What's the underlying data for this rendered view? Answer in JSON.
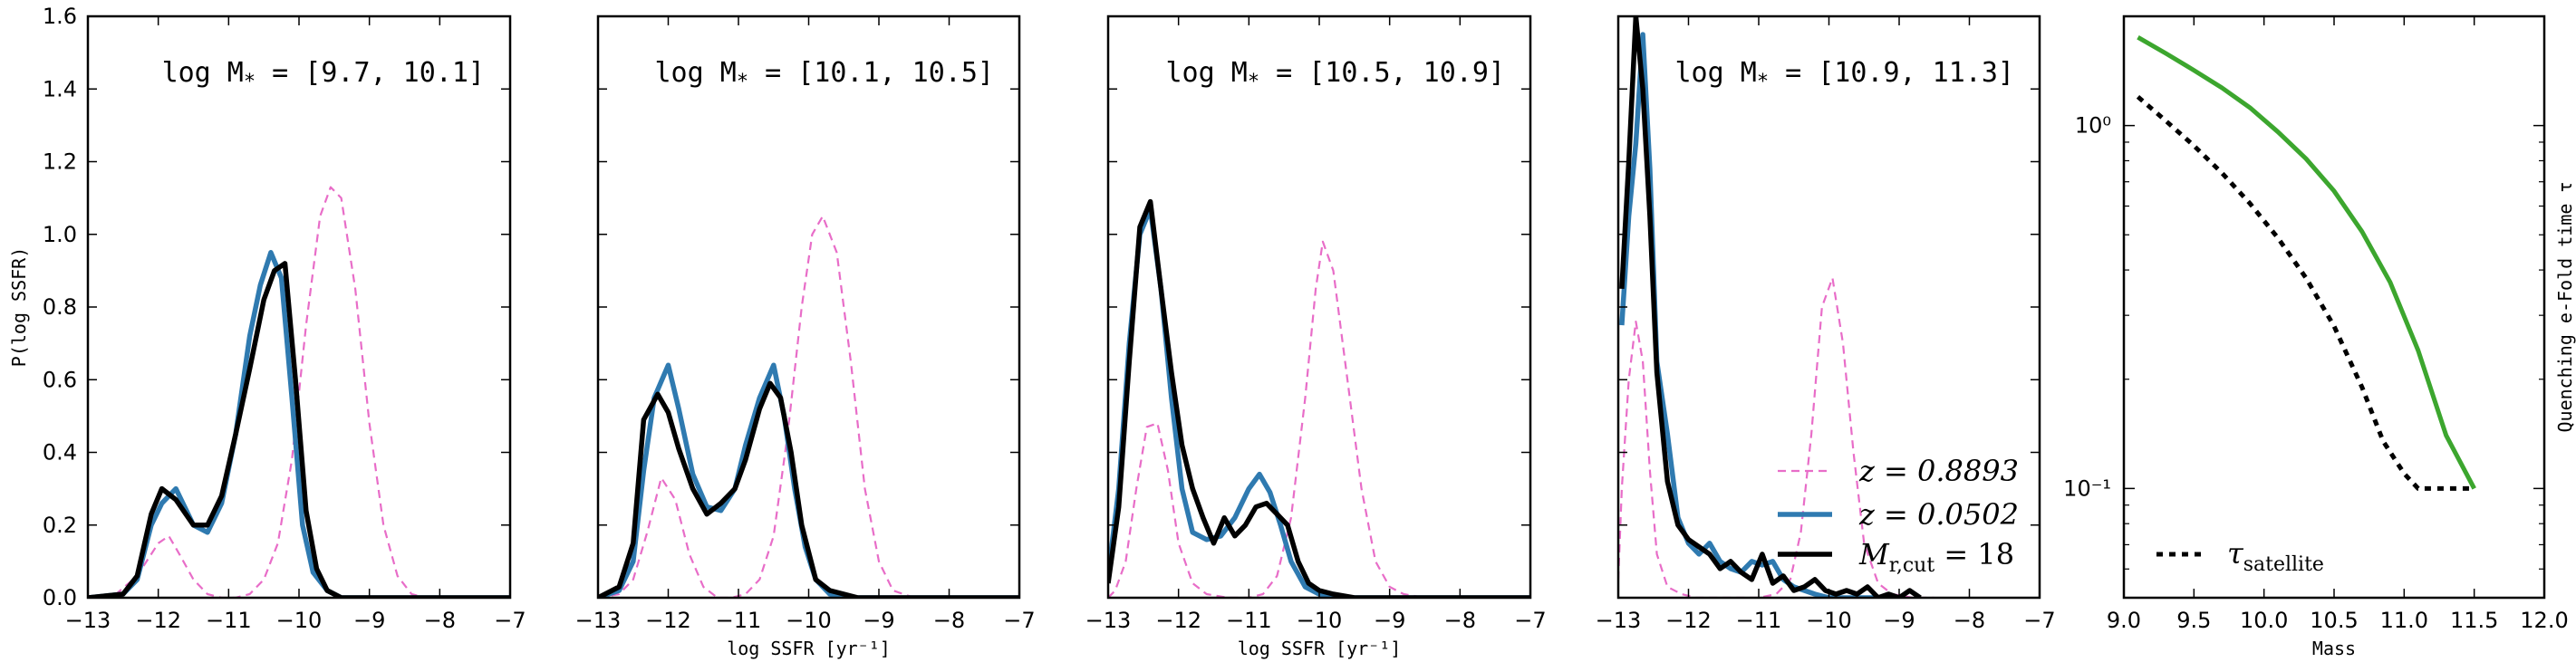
{
  "chart_data": [
    {
      "type": "line",
      "annotation": "log M* = [9.7, 10.1]",
      "ylabel": "P(log SSFR)",
      "xlabel": "",
      "xlim": [
        -13,
        -7
      ],
      "ylim": [
        0,
        1.6
      ],
      "xticks": [
        "−13",
        "−12",
        "−11",
        "−10",
        "−9",
        "−8",
        "−7"
      ],
      "yticks": [
        "0.0",
        "0.2",
        "0.4",
        "0.6",
        "0.8",
        "1.0",
        "1.2",
        "1.4",
        "1.6"
      ],
      "series": [
        {
          "name": "z = 0.8893",
          "x": [
            -13,
            -12.6,
            -12.3,
            -12.0,
            -11.85,
            -11.7,
            -11.5,
            -11.3,
            -11.1,
            -10.9,
            -10.7,
            -10.5,
            -10.3,
            -10.1,
            -9.9,
            -9.7,
            -9.55,
            -9.4,
            -9.2,
            -9.0,
            -8.8,
            -8.6,
            -8.4,
            -8.2,
            -8.0
          ],
          "y": [
            0,
            0.01,
            0.06,
            0.15,
            0.17,
            0.12,
            0.05,
            0.01,
            0,
            0,
            0.01,
            0.05,
            0.15,
            0.38,
            0.75,
            1.05,
            1.13,
            1.1,
            0.85,
            0.48,
            0.2,
            0.06,
            0.01,
            0,
            0
          ]
        },
        {
          "name": "z = 0.0502",
          "x": [
            -13,
            -12.5,
            -12.3,
            -12.1,
            -11.95,
            -11.75,
            -11.5,
            -11.3,
            -11.1,
            -10.9,
            -10.7,
            -10.55,
            -10.4,
            -10.25,
            -10.1,
            -9.95,
            -9.8,
            -9.6,
            -9.4,
            -9.0,
            -8.0,
            -7.0
          ],
          "y": [
            0,
            0.01,
            0.05,
            0.2,
            0.26,
            0.3,
            0.2,
            0.18,
            0.26,
            0.45,
            0.72,
            0.86,
            0.95,
            0.88,
            0.55,
            0.2,
            0.07,
            0.02,
            0,
            0,
            0,
            0
          ]
        },
        {
          "name": "M_r,cut = 18",
          "x": [
            -13,
            -12.5,
            -12.3,
            -12.1,
            -11.95,
            -11.75,
            -11.5,
            -11.3,
            -11.1,
            -10.9,
            -10.7,
            -10.5,
            -10.35,
            -10.2,
            -10.05,
            -9.9,
            -9.75,
            -9.6,
            -9.4,
            -9.0,
            -8.0,
            -7.0
          ],
          "y": [
            0,
            0.01,
            0.06,
            0.23,
            0.3,
            0.27,
            0.2,
            0.2,
            0.28,
            0.45,
            0.63,
            0.82,
            0.9,
            0.92,
            0.6,
            0.24,
            0.08,
            0.02,
            0,
            0,
            0,
            0
          ]
        }
      ]
    },
    {
      "type": "line",
      "annotation": "log M* = [10.1, 10.5]",
      "ylabel": "",
      "xlabel": "log SSFR [yr⁻¹]",
      "xlim": [
        -13,
        -7
      ],
      "ylim": [
        0,
        1.6
      ],
      "xticks": [
        "−13",
        "−12",
        "−11",
        "−10",
        "−9",
        "−8",
        "−7"
      ],
      "yticks": [],
      "series": [
        {
          "name": "z = 0.8893",
          "x": [
            -13,
            -12.7,
            -12.5,
            -12.3,
            -12.1,
            -11.9,
            -11.7,
            -11.5,
            -11.3,
            -11.1,
            -10.9,
            -10.7,
            -10.5,
            -10.3,
            -10.1,
            -9.95,
            -9.8,
            -9.6,
            -9.4,
            -9.2,
            -9.0,
            -8.8,
            -8.5,
            -8.0
          ],
          "y": [
            0,
            0.01,
            0.05,
            0.18,
            0.33,
            0.27,
            0.12,
            0.03,
            0,
            0,
            0.01,
            0.05,
            0.17,
            0.45,
            0.8,
            1.0,
            1.05,
            0.95,
            0.65,
            0.3,
            0.1,
            0.02,
            0,
            0
          ]
        },
        {
          "name": "z = 0.0502",
          "x": [
            -13,
            -12.7,
            -12.5,
            -12.35,
            -12.2,
            -12.0,
            -11.85,
            -11.65,
            -11.45,
            -11.25,
            -11.05,
            -10.9,
            -10.7,
            -10.5,
            -10.35,
            -10.2,
            -10.05,
            -9.9,
            -9.7,
            -9.5,
            -9.3,
            -9.0,
            -8.0,
            -7.0
          ],
          "y": [
            0,
            0.02,
            0.1,
            0.35,
            0.55,
            0.64,
            0.52,
            0.34,
            0.25,
            0.24,
            0.3,
            0.42,
            0.55,
            0.64,
            0.5,
            0.3,
            0.14,
            0.05,
            0.01,
            0,
            0,
            0,
            0,
            0
          ]
        },
        {
          "name": "M_r,cut = 18",
          "x": [
            -13,
            -12.7,
            -12.5,
            -12.35,
            -12.15,
            -12.0,
            -11.85,
            -11.65,
            -11.45,
            -11.25,
            -11.05,
            -10.9,
            -10.7,
            -10.55,
            -10.4,
            -10.25,
            -10.1,
            -9.9,
            -9.7,
            -9.5,
            -9.3,
            -9.0,
            -8.0,
            -7.0
          ],
          "y": [
            0,
            0.03,
            0.15,
            0.49,
            0.56,
            0.51,
            0.41,
            0.3,
            0.23,
            0.26,
            0.3,
            0.38,
            0.52,
            0.59,
            0.55,
            0.4,
            0.2,
            0.05,
            0.02,
            0.01,
            0,
            0,
            0,
            0
          ]
        }
      ]
    },
    {
      "type": "line",
      "annotation": "log M* = [10.5, 10.9]",
      "ylabel": "",
      "xlabel": "log SSFR [yr⁻¹]",
      "xlim": [
        -13,
        -7
      ],
      "ylim": [
        0,
        1.6
      ],
      "xticks": [
        "−13",
        "−12",
        "−11",
        "−10",
        "−9",
        "−8",
        "−7"
      ],
      "yticks": [],
      "series": [
        {
          "name": "z = 0.8893",
          "x": [
            -13,
            -12.9,
            -12.75,
            -12.6,
            -12.45,
            -12.3,
            -12.15,
            -12.0,
            -11.8,
            -11.6,
            -11.3,
            -11.0,
            -10.8,
            -10.6,
            -10.4,
            -10.2,
            -10.05,
            -9.95,
            -9.8,
            -9.6,
            -9.4,
            -9.2,
            -9.0,
            -8.8,
            -8.5,
            -8.0
          ],
          "y": [
            0,
            0.02,
            0.1,
            0.3,
            0.47,
            0.48,
            0.35,
            0.15,
            0.04,
            0.01,
            0,
            0,
            0.01,
            0.06,
            0.22,
            0.55,
            0.85,
            0.98,
            0.9,
            0.6,
            0.3,
            0.1,
            0.03,
            0.01,
            0,
            0
          ]
        },
        {
          "name": "z = 0.0502",
          "x": [
            -13,
            -12.85,
            -12.7,
            -12.55,
            -12.4,
            -12.25,
            -12.1,
            -11.95,
            -11.8,
            -11.6,
            -11.4,
            -11.2,
            -11.0,
            -10.85,
            -10.7,
            -10.55,
            -10.4,
            -10.2,
            -10.0,
            -9.8,
            -9.5,
            -9.0,
            -8.0,
            -7.0
          ],
          "y": [
            0.06,
            0.3,
            0.7,
            1.0,
            1.07,
            0.85,
            0.55,
            0.3,
            0.18,
            0.16,
            0.17,
            0.22,
            0.3,
            0.34,
            0.29,
            0.2,
            0.1,
            0.03,
            0.01,
            0,
            0,
            0,
            0,
            0
          ]
        },
        {
          "name": "M_r,cut = 18",
          "x": [
            -13,
            -12.85,
            -12.7,
            -12.55,
            -12.4,
            -12.25,
            -12.1,
            -11.95,
            -11.8,
            -11.65,
            -11.5,
            -11.35,
            -11.2,
            -11.05,
            -10.9,
            -10.75,
            -10.6,
            -10.45,
            -10.3,
            -10.15,
            -10.0,
            -9.8,
            -9.5,
            -9.0,
            -8.0,
            -7.0
          ],
          "y": [
            0.04,
            0.25,
            0.65,
            1.02,
            1.09,
            0.85,
            0.62,
            0.42,
            0.3,
            0.22,
            0.15,
            0.22,
            0.17,
            0.2,
            0.25,
            0.26,
            0.23,
            0.2,
            0.1,
            0.04,
            0.02,
            0.01,
            0,
            0,
            0,
            0
          ]
        }
      ]
    },
    {
      "type": "line",
      "annotation": "log M* = [10.9, 11.3]",
      "ylabel": "",
      "xlabel": "",
      "xlim": [
        -13,
        -7
      ],
      "ylim": [
        0,
        1.6
      ],
      "xticks": [
        "−13",
        "−12",
        "−11",
        "−10",
        "−9",
        "−8",
        "−7"
      ],
      "yticks": [],
      "legend": {
        "entries": [
          "z = 0.8893",
          "z = 0.0502",
          "M_r,cut = 18"
        ],
        "position": "lower-right"
      },
      "series": [
        {
          "name": "z = 0.8893",
          "x": [
            -13,
            -12.95,
            -12.85,
            -12.75,
            -12.65,
            -12.55,
            -12.45,
            -12.3,
            -12.1,
            -11.9,
            -11.5,
            -11.0,
            -10.75,
            -10.55,
            -10.4,
            -10.25,
            -10.1,
            -9.95,
            -9.8,
            -9.65,
            -9.5,
            -9.3,
            -9.1,
            -8.8,
            -8.5
          ],
          "y": [
            0.05,
            0.3,
            0.6,
            0.76,
            0.65,
            0.35,
            0.12,
            0.03,
            0.01,
            0,
            0,
            0,
            0.01,
            0.05,
            0.18,
            0.45,
            0.8,
            0.88,
            0.7,
            0.4,
            0.15,
            0.04,
            0.01,
            0,
            0
          ]
        },
        {
          "name": "z = 0.0502",
          "x": [
            -12.95,
            -12.85,
            -12.75,
            -12.65,
            -12.55,
            -12.45,
            -12.3,
            -12.15,
            -12.0,
            -11.85,
            -11.7,
            -11.55,
            -11.4,
            -11.25,
            -11.1,
            -10.95,
            -10.8,
            -10.65,
            -10.5,
            -10.35,
            -10.2,
            -10.0,
            -9.8,
            -9.5,
            -9.0
          ],
          "y": [
            0.75,
            1.05,
            1.25,
            1.55,
            1.18,
            0.65,
            0.45,
            0.22,
            0.15,
            0.12,
            0.15,
            0.1,
            0.08,
            0.07,
            0.1,
            0.09,
            0.1,
            0.05,
            0.03,
            0.02,
            0.01,
            0,
            0,
            0,
            0
          ]
        },
        {
          "name": "M_r,cut = 18",
          "x": [
            -12.95,
            -12.85,
            -12.75,
            -12.65,
            -12.55,
            -12.45,
            -12.3,
            -12.15,
            -12.0,
            -11.85,
            -11.7,
            -11.55,
            -11.4,
            -11.25,
            -11.1,
            -10.95,
            -10.8,
            -10.65,
            -10.5,
            -10.35,
            -10.2,
            -10.05,
            -9.9,
            -9.75,
            -9.6,
            -9.45,
            -9.3,
            -9.15,
            -9.0,
            -8.85,
            -8.7
          ],
          "y": [
            0.85,
            1.2,
            1.6,
            1.4,
            1.05,
            0.62,
            0.32,
            0.2,
            0.16,
            0.14,
            0.12,
            0.08,
            0.1,
            0.07,
            0.05,
            0.12,
            0.04,
            0.06,
            0.02,
            0.03,
            0.05,
            0.02,
            0.01,
            0.02,
            0.01,
            0.03,
            0.0,
            0.01,
            0.0,
            0.02,
            0.0
          ]
        }
      ]
    },
    {
      "type": "line",
      "annotation": "",
      "ylabel": "Quenching e-Fold time τ",
      "xlabel": "Mass",
      "xlim": [
        9.0,
        12.0
      ],
      "ylim": [
        0.05,
        2.0
      ],
      "yscale": "log",
      "xticks": [
        "9.0",
        "9.5",
        "10.0",
        "10.5",
        "11.0",
        "11.5",
        "12.0"
      ],
      "yticks_log": [
        "10⁻¹",
        "10⁰"
      ],
      "legend": {
        "entries": [
          "τ_satellite"
        ],
        "position": "lower-left"
      },
      "series": [
        {
          "name": "τ_satellite",
          "style": "dotted",
          "x": [
            9.1,
            9.3,
            9.5,
            9.7,
            9.9,
            10.1,
            10.3,
            10.5,
            10.7,
            10.85,
            11.0,
            11.1,
            11.3,
            11.5
          ],
          "y": [
            1.2,
            1.03,
            0.88,
            0.74,
            0.61,
            0.49,
            0.38,
            0.28,
            0.19,
            0.135,
            0.11,
            0.1,
            0.1,
            0.1
          ]
        },
        {
          "name": "",
          "style": "solid",
          "x": [
            9.1,
            9.3,
            9.5,
            9.7,
            9.9,
            10.1,
            10.3,
            10.5,
            10.7,
            10.9,
            11.1,
            11.3,
            11.5
          ],
          "y": [
            1.75,
            1.58,
            1.42,
            1.27,
            1.12,
            0.96,
            0.81,
            0.66,
            0.51,
            0.37,
            0.24,
            0.14,
            0.1
          ]
        }
      ]
    }
  ],
  "colors": {
    "z_high": "#e86dc8",
    "z_low": "#2f7ab0",
    "cut": "#000000",
    "green": "#3ca62e"
  },
  "annotation_prefix": "log M",
  "annotation_sub": "*"
}
